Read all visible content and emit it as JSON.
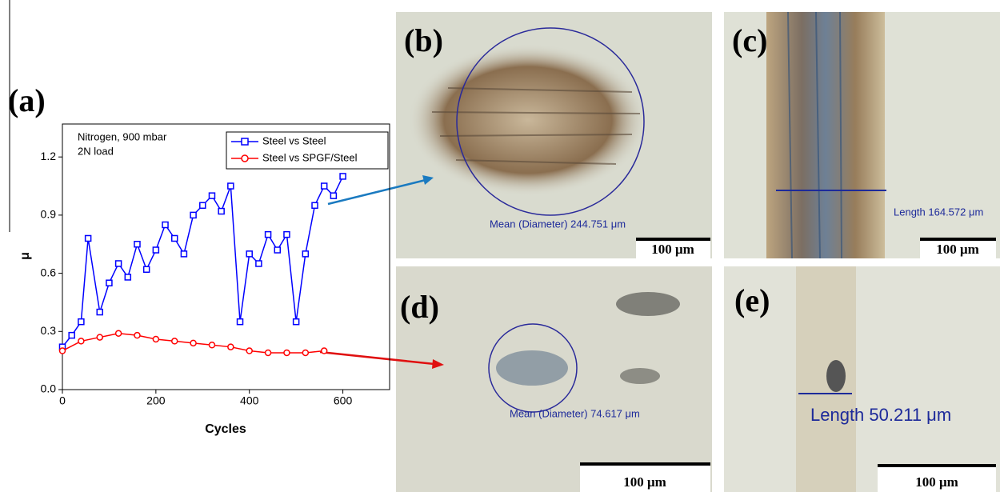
{
  "chart_data": {
    "type": "line",
    "panel_label": "(a)",
    "annotations": [
      "Nitrogen, 900 mbar",
      "2N load"
    ],
    "xlabel": "Cycles",
    "ylabel": "μ",
    "xlim": [
      0,
      700
    ],
    "xticks": [
      0,
      200,
      400,
      600
    ],
    "ylim": [
      0,
      1.37
    ],
    "yticks": [
      {
        "value": 0,
        "label": "0.0"
      },
      0.3,
      0.6,
      0.9,
      1.2
    ],
    "legend": "upper right",
    "series": [
      {
        "name": "Steel vs Steel",
        "color": "#0000ff",
        "marker": "square",
        "x": [
          0,
          20,
          40,
          55,
          80,
          100,
          120,
          140,
          160,
          180,
          200,
          220,
          240,
          260,
          280,
          300,
          320,
          340,
          360,
          380,
          400,
          420,
          440,
          460,
          480,
          500,
          520,
          540,
          560,
          580,
          600
        ],
        "values": [
          0.22,
          0.28,
          0.35,
          0.78,
          0.4,
          0.55,
          0.65,
          0.58,
          0.75,
          0.62,
          0.72,
          0.85,
          0.78,
          0.7,
          0.9,
          0.95,
          1.0,
          0.92,
          1.05,
          0.35,
          0.7,
          0.65,
          0.8,
          0.72,
          0.8,
          0.35,
          0.7,
          0.95,
          1.05,
          1.0,
          1.1
        ]
      },
      {
        "name": "Steel vs SPGF/Steel",
        "color": "#ff0000",
        "marker": "circle",
        "x": [
          0,
          40,
          80,
          120,
          160,
          200,
          240,
          280,
          320,
          360,
          400,
          440,
          480,
          520,
          560
        ],
        "values": [
          0.2,
          0.25,
          0.27,
          0.29,
          0.28,
          0.26,
          0.25,
          0.24,
          0.23,
          0.22,
          0.2,
          0.19,
          0.19,
          0.19,
          0.2
        ]
      }
    ]
  },
  "panels": [
    {
      "label": "(b)",
      "measurement": "Mean (Diameter) 244.751 μm",
      "scale_bar": "100 μm"
    },
    {
      "label": "(c)",
      "measurement": "Length 164.572 μm",
      "scale_bar": "100 μm"
    },
    {
      "label": "(d)",
      "measurement": "Mean (Diameter) 74.617 μm",
      "scale_bar": "100 μm"
    },
    {
      "label": "(e)",
      "measurement": "Length 50.211 μm",
      "scale_bar": "100 μm"
    }
  ]
}
